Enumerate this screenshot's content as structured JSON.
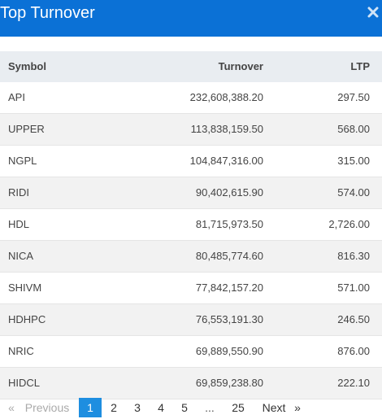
{
  "header": {
    "title": "Top Turnover",
    "close_icon": "close-icon"
  },
  "table": {
    "columns": {
      "symbol": "Symbol",
      "turnover": "Turnover",
      "ltp": "LTP"
    },
    "rows": [
      {
        "symbol": "API",
        "turnover": "232,608,388.20",
        "ltp": "297.50"
      },
      {
        "symbol": "UPPER",
        "turnover": "113,838,159.50",
        "ltp": "568.00"
      },
      {
        "symbol": "NGPL",
        "turnover": "104,847,316.00",
        "ltp": "315.00"
      },
      {
        "symbol": "RIDI",
        "turnover": "90,402,615.90",
        "ltp": "574.00"
      },
      {
        "symbol": "HDL",
        "turnover": "81,715,973.50",
        "ltp": "2,726.00"
      },
      {
        "symbol": "NICA",
        "turnover": "80,485,774.60",
        "ltp": "816.30"
      },
      {
        "symbol": "SHIVM",
        "turnover": "77,842,157.20",
        "ltp": "571.00"
      },
      {
        "symbol": "HDHPC",
        "turnover": "76,553,191.30",
        "ltp": "246.50"
      },
      {
        "symbol": "NRIC",
        "turnover": "69,889,550.90",
        "ltp": "876.00"
      },
      {
        "symbol": "HIDCL",
        "turnover": "69,859,238.80",
        "ltp": "222.10"
      }
    ]
  },
  "pagination": {
    "first_arrow": "«",
    "previous": "Previous",
    "pages": [
      "1",
      "2",
      "3",
      "4",
      "5"
    ],
    "ellipsis": "...",
    "last_page": "25",
    "next": "Next",
    "last_arrow": "»",
    "active_page": "1"
  },
  "colors": {
    "header_bg": "#0b71d6",
    "active_page_bg": "#1e8ee0",
    "row_alt_bg": "#f2f2f2"
  }
}
